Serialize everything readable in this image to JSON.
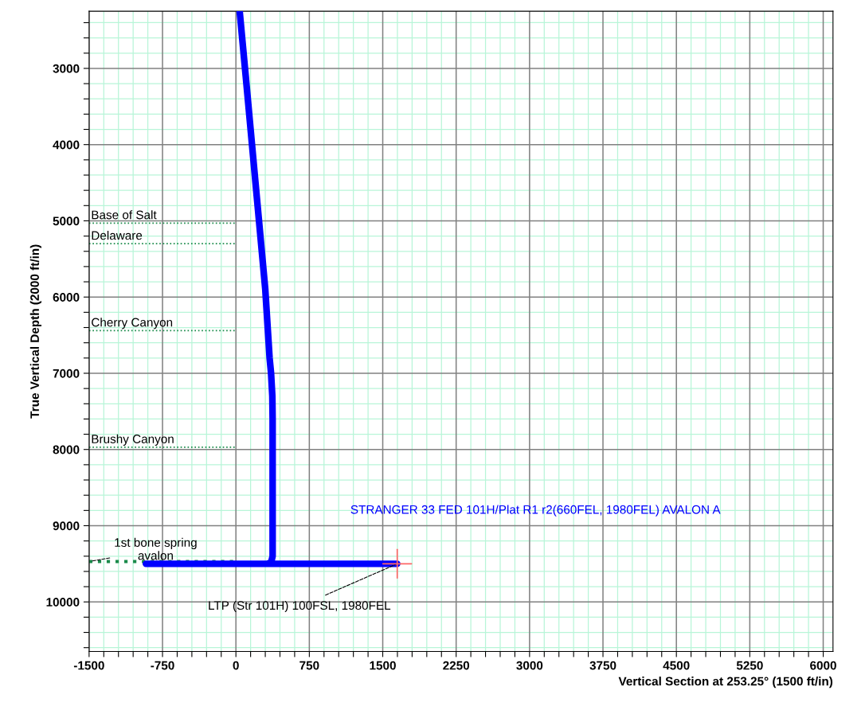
{
  "chart_data": {
    "type": "line",
    "xlabel": "Vertical Section at 253.25° (1500 ft/in)",
    "ylabel": "True Vertical Depth (2000 ft/in)",
    "xlim": [
      -1500,
      6100
    ],
    "ylim": [
      10650,
      2250
    ],
    "xticks": [
      -1500,
      {
        "value": -1350,
        "label": null
      },
      {
        "value": -1200,
        "label": null
      },
      {
        "value": -1050,
        "label": null
      },
      {
        "value": -900,
        "label": null
      },
      -750,
      {
        "value": -600,
        "label": null
      },
      {
        "value": -450,
        "label": null
      },
      {
        "value": -300,
        "label": null
      },
      {
        "value": -150,
        "label": null
      },
      0,
      {
        "value": 150,
        "label": null
      },
      {
        "value": 300,
        "label": null
      },
      {
        "value": 450,
        "label": null
      },
      {
        "value": 600,
        "label": null
      },
      750,
      {
        "value": 900,
        "label": null
      },
      {
        "value": 1050,
        "label": null
      },
      {
        "value": 1200,
        "label": null
      },
      {
        "value": 1350,
        "label": null
      },
      1500,
      {
        "value": 1650,
        "label": null
      },
      {
        "value": 1800,
        "label": null
      },
      {
        "value": 1950,
        "label": null
      },
      {
        "value": 2100,
        "label": null
      },
      2250,
      {
        "value": 2400,
        "label": null
      },
      {
        "value": 2550,
        "label": null
      },
      {
        "value": 2700,
        "label": null
      },
      {
        "value": 2850,
        "label": null
      },
      3000,
      {
        "value": 3150,
        "label": null
      },
      {
        "value": 3300,
        "label": null
      },
      {
        "value": 3450,
        "label": null
      },
      {
        "value": 3600,
        "label": null
      },
      3750,
      {
        "value": 3900,
        "label": null
      },
      {
        "value": 4050,
        "label": null
      },
      {
        "value": 4200,
        "label": null
      },
      {
        "value": 4350,
        "label": null
      },
      4500,
      {
        "value": 4650,
        "label": null
      },
      {
        "value": 4800,
        "label": null
      },
      {
        "value": 4950,
        "label": null
      },
      {
        "value": 5100,
        "label": null
      },
      5250,
      {
        "value": 5400,
        "label": null
      },
      {
        "value": 5550,
        "label": null
      },
      {
        "value": 5700,
        "label": null
      },
      {
        "value": 5850,
        "label": null
      },
      6000
    ],
    "yticks": [
      {
        "value": 2400,
        "label": null
      },
      {
        "value": 2600,
        "label": null
      },
      {
        "value": 2800,
        "label": null
      },
      3000,
      {
        "value": 3200,
        "label": null
      },
      {
        "value": 3400,
        "label": null
      },
      {
        "value": 3600,
        "label": null
      },
      {
        "value": 3800,
        "label": null
      },
      4000,
      {
        "value": 4200,
        "label": null
      },
      {
        "value": 4400,
        "label": null
      },
      {
        "value": 4600,
        "label": null
      },
      {
        "value": 4800,
        "label": null
      },
      5000,
      {
        "value": 5200,
        "label": null
      },
      {
        "value": 5400,
        "label": null
      },
      {
        "value": 5600,
        "label": null
      },
      {
        "value": 5800,
        "label": null
      },
      6000,
      {
        "value": 6200,
        "label": null
      },
      {
        "value": 6400,
        "label": null
      },
      {
        "value": 6600,
        "label": null
      },
      {
        "value": 6800,
        "label": null
      },
      7000,
      {
        "value": 7200,
        "label": null
      },
      {
        "value": 7400,
        "label": null
      },
      {
        "value": 7600,
        "label": null
      },
      {
        "value": 7800,
        "label": null
      },
      8000,
      {
        "value": 8200,
        "label": null
      },
      {
        "value": 8400,
        "label": null
      },
      {
        "value": 8600,
        "label": null
      },
      {
        "value": 8800,
        "label": null
      },
      9000,
      {
        "value": 9200,
        "label": null
      },
      {
        "value": 9400,
        "label": null
      },
      {
        "value": 9600,
        "label": null
      },
      {
        "value": 9800,
        "label": null
      },
      10000,
      {
        "value": 10200,
        "label": null
      },
      {
        "value": 10400,
        "label": null
      },
      {
        "value": 10600,
        "label": null
      }
    ],
    "grid": true,
    "line_style": "solid",
    "series": [
      {
        "name": "STRANGER 33 FED 101H/Plat R1 r2(660FEL, 1980FEL) AVALON A",
        "color": "#0000ff",
        "x": [
          39,
          100,
          200,
          300,
          344,
          359,
          372,
          375,
          375,
          360,
          320,
          -920,
          1648
        ],
        "values": [
          2260,
          3100,
          4500,
          5900,
          6800,
          7000,
          7300,
          7600,
          9400,
          9480,
          9500,
          9500,
          9500
        ]
      }
    ],
    "ref_lines": [
      {
        "axis": "y",
        "value": 5030,
        "label": "Base of Salt",
        "color": "#1a8a4a",
        "line_style": "dotted"
      },
      {
        "axis": "y",
        "value": 5300,
        "label": "Delaware",
        "color": "#1a8a4a",
        "line_style": "dotted"
      },
      {
        "axis": "y",
        "value": 6440,
        "label": "Cherry Canyon",
        "color": "#1a8a4a",
        "line_style": "dotted"
      },
      {
        "axis": "y",
        "value": 7970,
        "label": "Brushy Canyon",
        "color": "#1a8a4a",
        "line_style": "dotted"
      },
      {
        "axis": "y",
        "value": 9470,
        "label": "1st bone spring\navalon",
        "color": "#1a8a4a",
        "line_style": "dotted"
      }
    ],
    "annotations": [
      {
        "text": "LTP (Str 101H) 100FSL, 1980FEL",
        "x": 1648,
        "y": 9500
      }
    ]
  }
}
